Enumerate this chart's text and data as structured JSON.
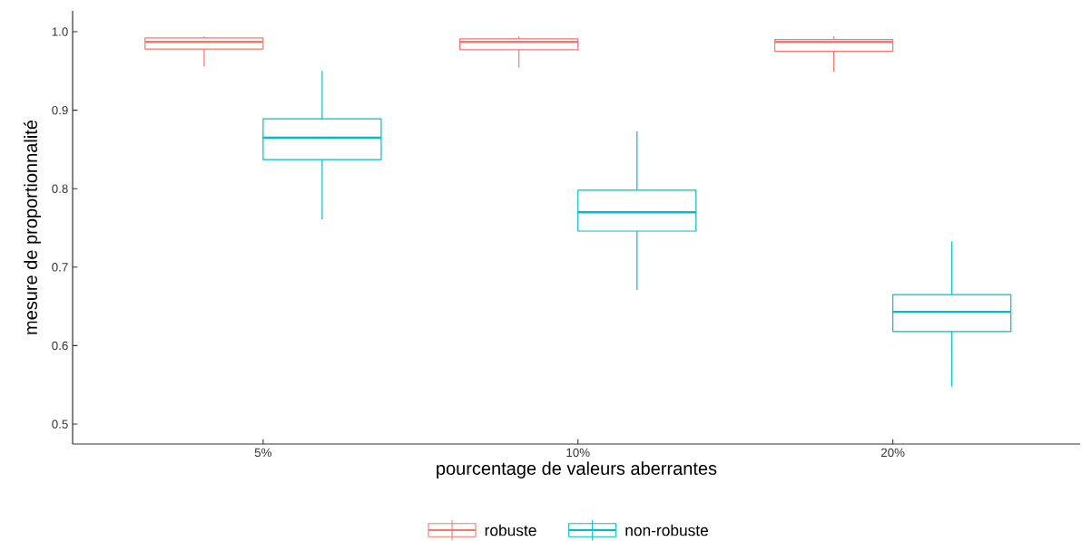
{
  "chart_data": {
    "type": "box",
    "xlabel": "pourcentage de valeurs aberrantes",
    "ylabel": "mesure de proportionnalité",
    "categories": [
      "5%",
      "10%",
      "20%"
    ],
    "ylim": [
      0.4746,
      1.0266
    ],
    "yticks": [
      0.5,
      0.6,
      0.7,
      0.8,
      0.9,
      {
        "value": 1.0,
        "label": "1.0"
      }
    ],
    "legend": "bottom",
    "series": [
      {
        "name": "robuste",
        "color": "#f8766d",
        "boxes": [
          {
            "low": 0.956,
            "q1": 0.978,
            "median": 0.987,
            "q3": 0.992,
            "high": 0.994
          },
          {
            "low": 0.954,
            "q1": 0.977,
            "median": 0.987,
            "q3": 0.991,
            "high": 0.994
          },
          {
            "low": 0.949,
            "q1": 0.975,
            "median": 0.987,
            "q3": 0.99,
            "high": 0.994
          }
        ]
      },
      {
        "name": "non-robuste",
        "color": "#00bfc4",
        "boxes": [
          {
            "low": 0.761,
            "q1": 0.837,
            "median": 0.865,
            "q3": 0.889,
            "high": 0.95
          },
          {
            "low": 0.671,
            "q1": 0.746,
            "median": 0.77,
            "q3": 0.798,
            "high": 0.873
          },
          {
            "low": 0.548,
            "q1": 0.618,
            "median": 0.643,
            "q3": 0.665,
            "high": 0.733
          }
        ]
      }
    ]
  }
}
